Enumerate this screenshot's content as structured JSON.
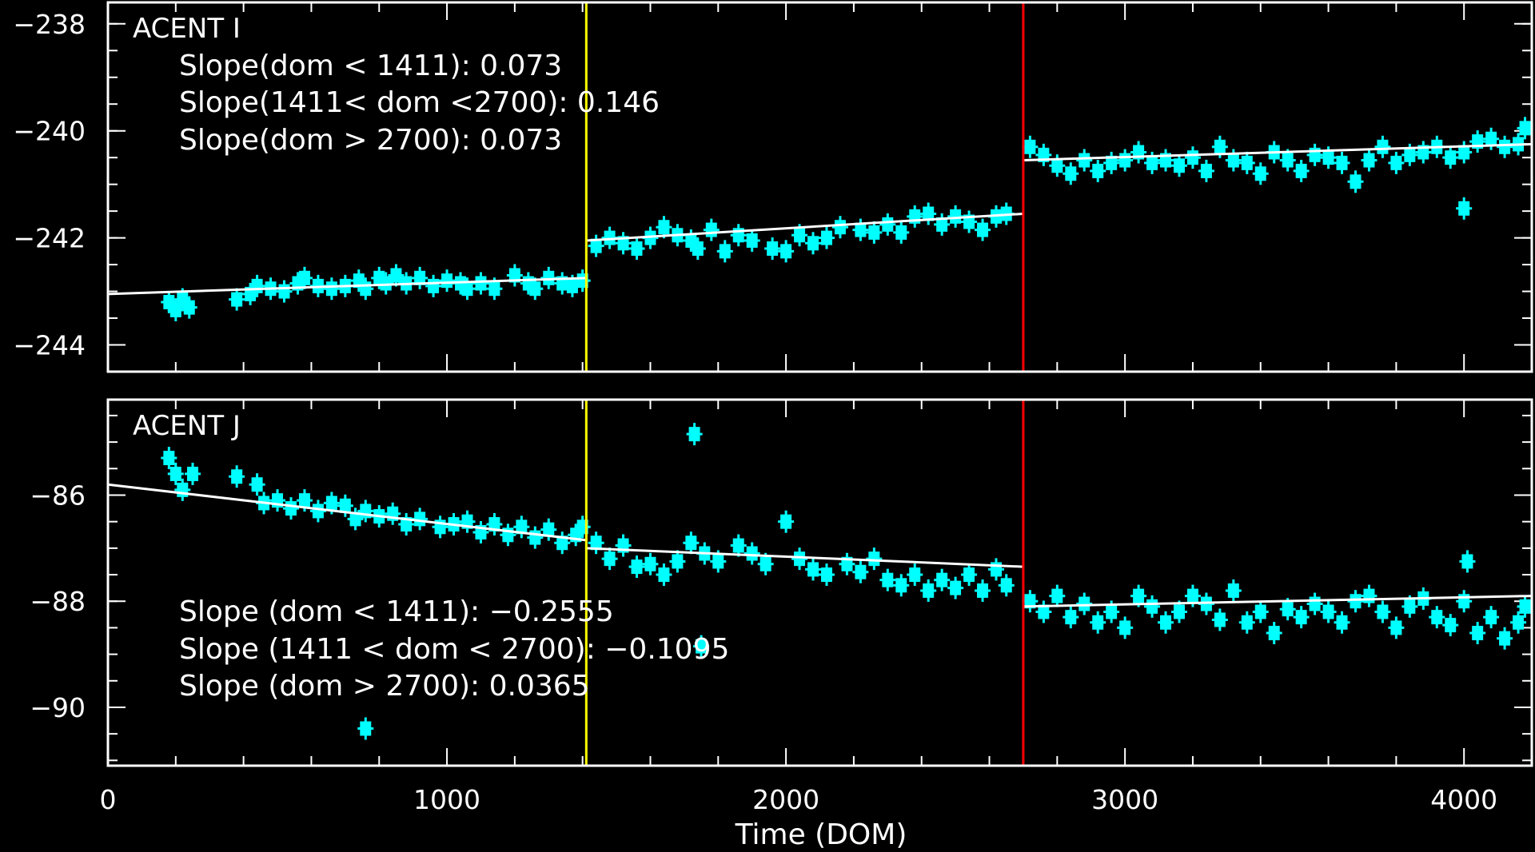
{
  "colors": {
    "background": "#000000",
    "axes": "#ffffff",
    "data": "#00ffff",
    "fit": "#ffffff",
    "marker_1411": "#ffff00",
    "marker_2700": "#ff0000"
  },
  "x_axis": {
    "title": "Time (DOM)",
    "range": [
      0,
      4200
    ],
    "tick_labels": [
      "0",
      "1000",
      "2000",
      "3000",
      "4000"
    ]
  },
  "chart_data": [
    {
      "type": "scatter",
      "title": "ACENT I",
      "ylim": [
        -244.5,
        -237.6
      ],
      "y_tick_labels": [
        "−238",
        "−240",
        "−242",
        "−244"
      ],
      "vertical_lines": [
        1411,
        2700
      ],
      "annotations": [
        "Slope(dom < 1411): 0.073",
        "Slope(1411< dom <2700): 0.146",
        "Slope(dom > 2700): 0.073"
      ],
      "fit_segments": [
        {
          "x": [
            0,
            1411
          ],
          "y": [
            -243.05,
            -242.75
          ]
        },
        {
          "x": [
            1411,
            2700
          ],
          "y": [
            -242.05,
            -241.55
          ]
        },
        {
          "x": [
            2700,
            4200
          ],
          "y": [
            -240.55,
            -240.25
          ]
        }
      ],
      "points": [
        [
          180,
          -243.2
        ],
        [
          200,
          -243.35
        ],
        [
          220,
          -243.15
        ],
        [
          240,
          -243.3
        ],
        [
          380,
          -243.15
        ],
        [
          420,
          -243.05
        ],
        [
          440,
          -242.9
        ],
        [
          480,
          -242.95
        ],
        [
          520,
          -243.0
        ],
        [
          560,
          -242.85
        ],
        [
          580,
          -242.75
        ],
        [
          620,
          -242.9
        ],
        [
          660,
          -242.95
        ],
        [
          700,
          -242.9
        ],
        [
          740,
          -242.8
        ],
        [
          760,
          -242.95
        ],
        [
          800,
          -242.75
        ],
        [
          820,
          -242.85
        ],
        [
          850,
          -242.7
        ],
        [
          880,
          -242.85
        ],
        [
          920,
          -242.75
        ],
        [
          960,
          -242.9
        ],
        [
          1000,
          -242.8
        ],
        [
          1040,
          -242.85
        ],
        [
          1060,
          -242.95
        ],
        [
          1100,
          -242.85
        ],
        [
          1140,
          -242.95
        ],
        [
          1200,
          -242.7
        ],
        [
          1240,
          -242.85
        ],
        [
          1260,
          -242.95
        ],
        [
          1300,
          -242.75
        ],
        [
          1340,
          -242.85
        ],
        [
          1370,
          -242.9
        ],
        [
          1400,
          -242.8
        ],
        [
          1440,
          -242.15
        ],
        [
          1480,
          -242.0
        ],
        [
          1520,
          -242.1
        ],
        [
          1560,
          -242.2
        ],
        [
          1600,
          -242.0
        ],
        [
          1640,
          -241.8
        ],
        [
          1680,
          -241.95
        ],
        [
          1720,
          -242.05
        ],
        [
          1740,
          -242.2
        ],
        [
          1780,
          -241.85
        ],
        [
          1820,
          -242.25
        ],
        [
          1860,
          -241.95
        ],
        [
          1900,
          -242.05
        ],
        [
          1960,
          -242.2
        ],
        [
          2000,
          -242.25
        ],
        [
          2040,
          -241.95
        ],
        [
          2080,
          -242.1
        ],
        [
          2120,
          -242.0
        ],
        [
          2160,
          -241.8
        ],
        [
          2220,
          -241.85
        ],
        [
          2260,
          -241.9
        ],
        [
          2300,
          -241.75
        ],
        [
          2340,
          -241.9
        ],
        [
          2380,
          -241.6
        ],
        [
          2420,
          -241.55
        ],
        [
          2460,
          -241.75
        ],
        [
          2500,
          -241.6
        ],
        [
          2540,
          -241.7
        ],
        [
          2580,
          -241.85
        ],
        [
          2620,
          -241.6
        ],
        [
          2650,
          -241.55
        ],
        [
          2720,
          -240.3
        ],
        [
          2760,
          -240.45
        ],
        [
          2800,
          -240.65
        ],
        [
          2840,
          -240.8
        ],
        [
          2880,
          -240.55
        ],
        [
          2920,
          -240.75
        ],
        [
          2960,
          -240.6
        ],
        [
          3000,
          -240.55
        ],
        [
          3040,
          -240.4
        ],
        [
          3080,
          -240.6
        ],
        [
          3120,
          -240.55
        ],
        [
          3160,
          -240.65
        ],
        [
          3200,
          -240.5
        ],
        [
          3240,
          -240.75
        ],
        [
          3280,
          -240.3
        ],
        [
          3320,
          -240.55
        ],
        [
          3360,
          -240.6
        ],
        [
          3400,
          -240.8
        ],
        [
          3440,
          -240.4
        ],
        [
          3480,
          -240.55
        ],
        [
          3520,
          -240.75
        ],
        [
          3560,
          -240.45
        ],
        [
          3600,
          -240.5
        ],
        [
          3640,
          -240.6
        ],
        [
          3680,
          -240.95
        ],
        [
          3720,
          -240.55
        ],
        [
          3760,
          -240.3
        ],
        [
          3800,
          -240.6
        ],
        [
          3840,
          -240.45
        ],
        [
          3880,
          -240.4
        ],
        [
          3920,
          -240.3
        ],
        [
          3960,
          -240.5
        ],
        [
          4000,
          -240.4
        ],
        [
          4040,
          -240.2
        ],
        [
          4080,
          -240.15
        ],
        [
          4120,
          -240.3
        ],
        [
          4160,
          -240.25
        ],
        [
          4180,
          -239.95
        ],
        [
          4000,
          -241.45
        ]
      ]
    },
    {
      "type": "scatter",
      "title": "ACENT J",
      "ylim": [
        -91.1,
        -84.2
      ],
      "y_tick_labels": [
        "−86",
        "−88",
        "−90"
      ],
      "vertical_lines": [
        1411,
        2700
      ],
      "annotations": [
        "Slope (dom < 1411): −0.2555",
        "Slope (1411 < dom < 2700): −0.1095",
        "Slope (dom > 2700): 0.0365"
      ],
      "fit_segments": [
        {
          "x": [
            0,
            1411
          ],
          "y": [
            -85.8,
            -86.85
          ]
        },
        {
          "x": [
            1411,
            2700
          ],
          "y": [
            -87.0,
            -87.35
          ]
        },
        {
          "x": [
            2700,
            4200
          ],
          "y": [
            -88.1,
            -87.9
          ]
        }
      ],
      "points": [
        [
          180,
          -85.3
        ],
        [
          200,
          -85.6
        ],
        [
          220,
          -85.9
        ],
        [
          250,
          -85.6
        ],
        [
          380,
          -85.65
        ],
        [
          440,
          -85.8
        ],
        [
          460,
          -86.15
        ],
        [
          500,
          -86.1
        ],
        [
          540,
          -86.25
        ],
        [
          580,
          -86.1
        ],
        [
          620,
          -86.3
        ],
        [
          660,
          -86.15
        ],
        [
          700,
          -86.2
        ],
        [
          730,
          -86.45
        ],
        [
          760,
          -86.3
        ],
        [
          800,
          -86.4
        ],
        [
          840,
          -86.35
        ],
        [
          880,
          -86.55
        ],
        [
          920,
          -86.45
        ],
        [
          980,
          -86.6
        ],
        [
          1020,
          -86.55
        ],
        [
          1060,
          -86.5
        ],
        [
          1100,
          -86.7
        ],
        [
          1140,
          -86.55
        ],
        [
          1180,
          -86.75
        ],
        [
          1220,
          -86.6
        ],
        [
          1260,
          -86.8
        ],
        [
          1300,
          -86.65
        ],
        [
          1340,
          -86.9
        ],
        [
          1380,
          -86.75
        ],
        [
          1400,
          -86.6
        ],
        [
          760,
          -90.4
        ],
        [
          1730,
          -84.85
        ],
        [
          1750,
          -88.85
        ],
        [
          1440,
          -86.9
        ],
        [
          1480,
          -87.2
        ],
        [
          1520,
          -86.95
        ],
        [
          1560,
          -87.35
        ],
        [
          1600,
          -87.3
        ],
        [
          1640,
          -87.5
        ],
        [
          1680,
          -87.25
        ],
        [
          1720,
          -86.9
        ],
        [
          1760,
          -87.1
        ],
        [
          1800,
          -87.25
        ],
        [
          1860,
          -86.95
        ],
        [
          1900,
          -87.1
        ],
        [
          1940,
          -87.3
        ],
        [
          2000,
          -86.5
        ],
        [
          2040,
          -87.2
        ],
        [
          2080,
          -87.4
        ],
        [
          2120,
          -87.5
        ],
        [
          2180,
          -87.3
        ],
        [
          2220,
          -87.45
        ],
        [
          2260,
          -87.2
        ],
        [
          2300,
          -87.6
        ],
        [
          2340,
          -87.7
        ],
        [
          2380,
          -87.5
        ],
        [
          2420,
          -87.8
        ],
        [
          2460,
          -87.6
        ],
        [
          2500,
          -87.75
        ],
        [
          2540,
          -87.5
        ],
        [
          2580,
          -87.8
        ],
        [
          2620,
          -87.4
        ],
        [
          2650,
          -87.7
        ],
        [
          2720,
          -88.0
        ],
        [
          2760,
          -88.2
        ],
        [
          2800,
          -87.9
        ],
        [
          2840,
          -88.3
        ],
        [
          2880,
          -88.05
        ],
        [
          2920,
          -88.4
        ],
        [
          2960,
          -88.2
        ],
        [
          3000,
          -88.5
        ],
        [
          3040,
          -87.9
        ],
        [
          3080,
          -88.1
        ],
        [
          3120,
          -88.4
        ],
        [
          3160,
          -88.2
        ],
        [
          3200,
          -87.9
        ],
        [
          3240,
          -88.05
        ],
        [
          3280,
          -88.35
        ],
        [
          3320,
          -87.8
        ],
        [
          3360,
          -88.4
        ],
        [
          3400,
          -88.2
        ],
        [
          3440,
          -88.6
        ],
        [
          3480,
          -88.15
        ],
        [
          3520,
          -88.3
        ],
        [
          3560,
          -88.05
        ],
        [
          3600,
          -88.2
        ],
        [
          3640,
          -88.4
        ],
        [
          3680,
          -88.0
        ],
        [
          3720,
          -87.9
        ],
        [
          3760,
          -88.2
        ],
        [
          3800,
          -88.5
        ],
        [
          3840,
          -88.1
        ],
        [
          3880,
          -87.95
        ],
        [
          3920,
          -88.3
        ],
        [
          3960,
          -88.45
        ],
        [
          4000,
          -88.0
        ],
        [
          4040,
          -88.6
        ],
        [
          4080,
          -88.3
        ],
        [
          4120,
          -88.7
        ],
        [
          4160,
          -88.4
        ],
        [
          4180,
          -88.1
        ],
        [
          4010,
          -87.25
        ]
      ]
    }
  ]
}
